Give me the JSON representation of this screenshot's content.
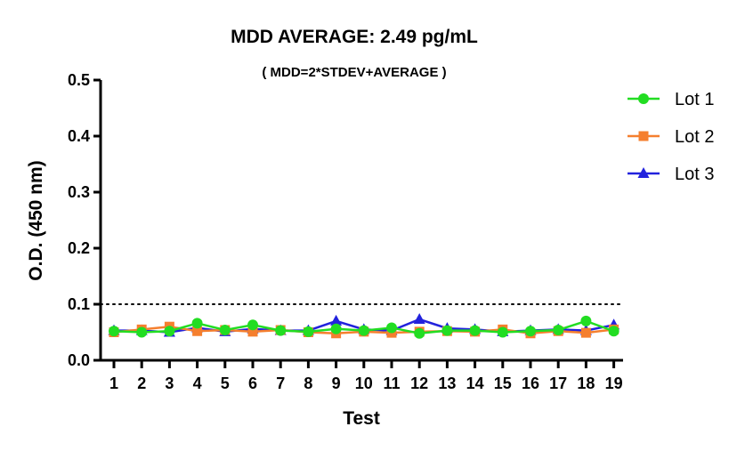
{
  "chart_data": {
    "type": "line",
    "title": "MDD AVERAGE:  2.49 pg/mL",
    "subtitle": "( MDD=2*STDEV+AVERAGE )",
    "xlabel": "Test",
    "ylabel": "O.D. (450 nm)",
    "x": [
      1,
      2,
      3,
      4,
      5,
      6,
      7,
      8,
      9,
      10,
      11,
      12,
      13,
      14,
      15,
      16,
      17,
      18,
      19
    ],
    "x_tick_labels": [
      "1",
      "2",
      "3",
      "4",
      "5",
      "6",
      "7",
      "8",
      "9",
      "10",
      "11",
      "12",
      "13",
      "14",
      "15",
      "16",
      "17",
      "18",
      "19"
    ],
    "ylim": [
      0,
      0.5
    ],
    "y_ticks": [
      0.0,
      0.1,
      0.2,
      0.3,
      0.4,
      0.5
    ],
    "y_tick_labels": [
      "0.0",
      "0.1",
      "0.2",
      "0.3",
      "0.4",
      "0.5"
    ],
    "reference_line": {
      "y": 0.1,
      "style": "dotted"
    },
    "legend_position": "top-right",
    "grid": false,
    "series": [
      {
        "name": "Lot 1",
        "color": "#22dd22",
        "marker": "circle",
        "values": [
          0.052,
          0.05,
          0.052,
          0.066,
          0.054,
          0.063,
          0.053,
          0.051,
          0.056,
          0.053,
          0.058,
          0.048,
          0.053,
          0.053,
          0.05,
          0.052,
          0.054,
          0.07,
          0.052
        ]
      },
      {
        "name": "Lot 2",
        "color": "#f57f2e",
        "marker": "square",
        "values": [
          0.05,
          0.055,
          0.06,
          0.052,
          0.054,
          0.051,
          0.054,
          0.05,
          0.048,
          0.051,
          0.049,
          0.051,
          0.052,
          0.051,
          0.055,
          0.048,
          0.052,
          0.049,
          0.055
        ]
      },
      {
        "name": "Lot 3",
        "color": "#2222dd",
        "marker": "triangle",
        "values": [
          0.053,
          0.053,
          0.05,
          0.058,
          0.051,
          0.056,
          0.053,
          0.053,
          0.07,
          0.055,
          0.053,
          0.073,
          0.057,
          0.055,
          0.051,
          0.053,
          0.055,
          0.053,
          0.063
        ]
      }
    ]
  }
}
